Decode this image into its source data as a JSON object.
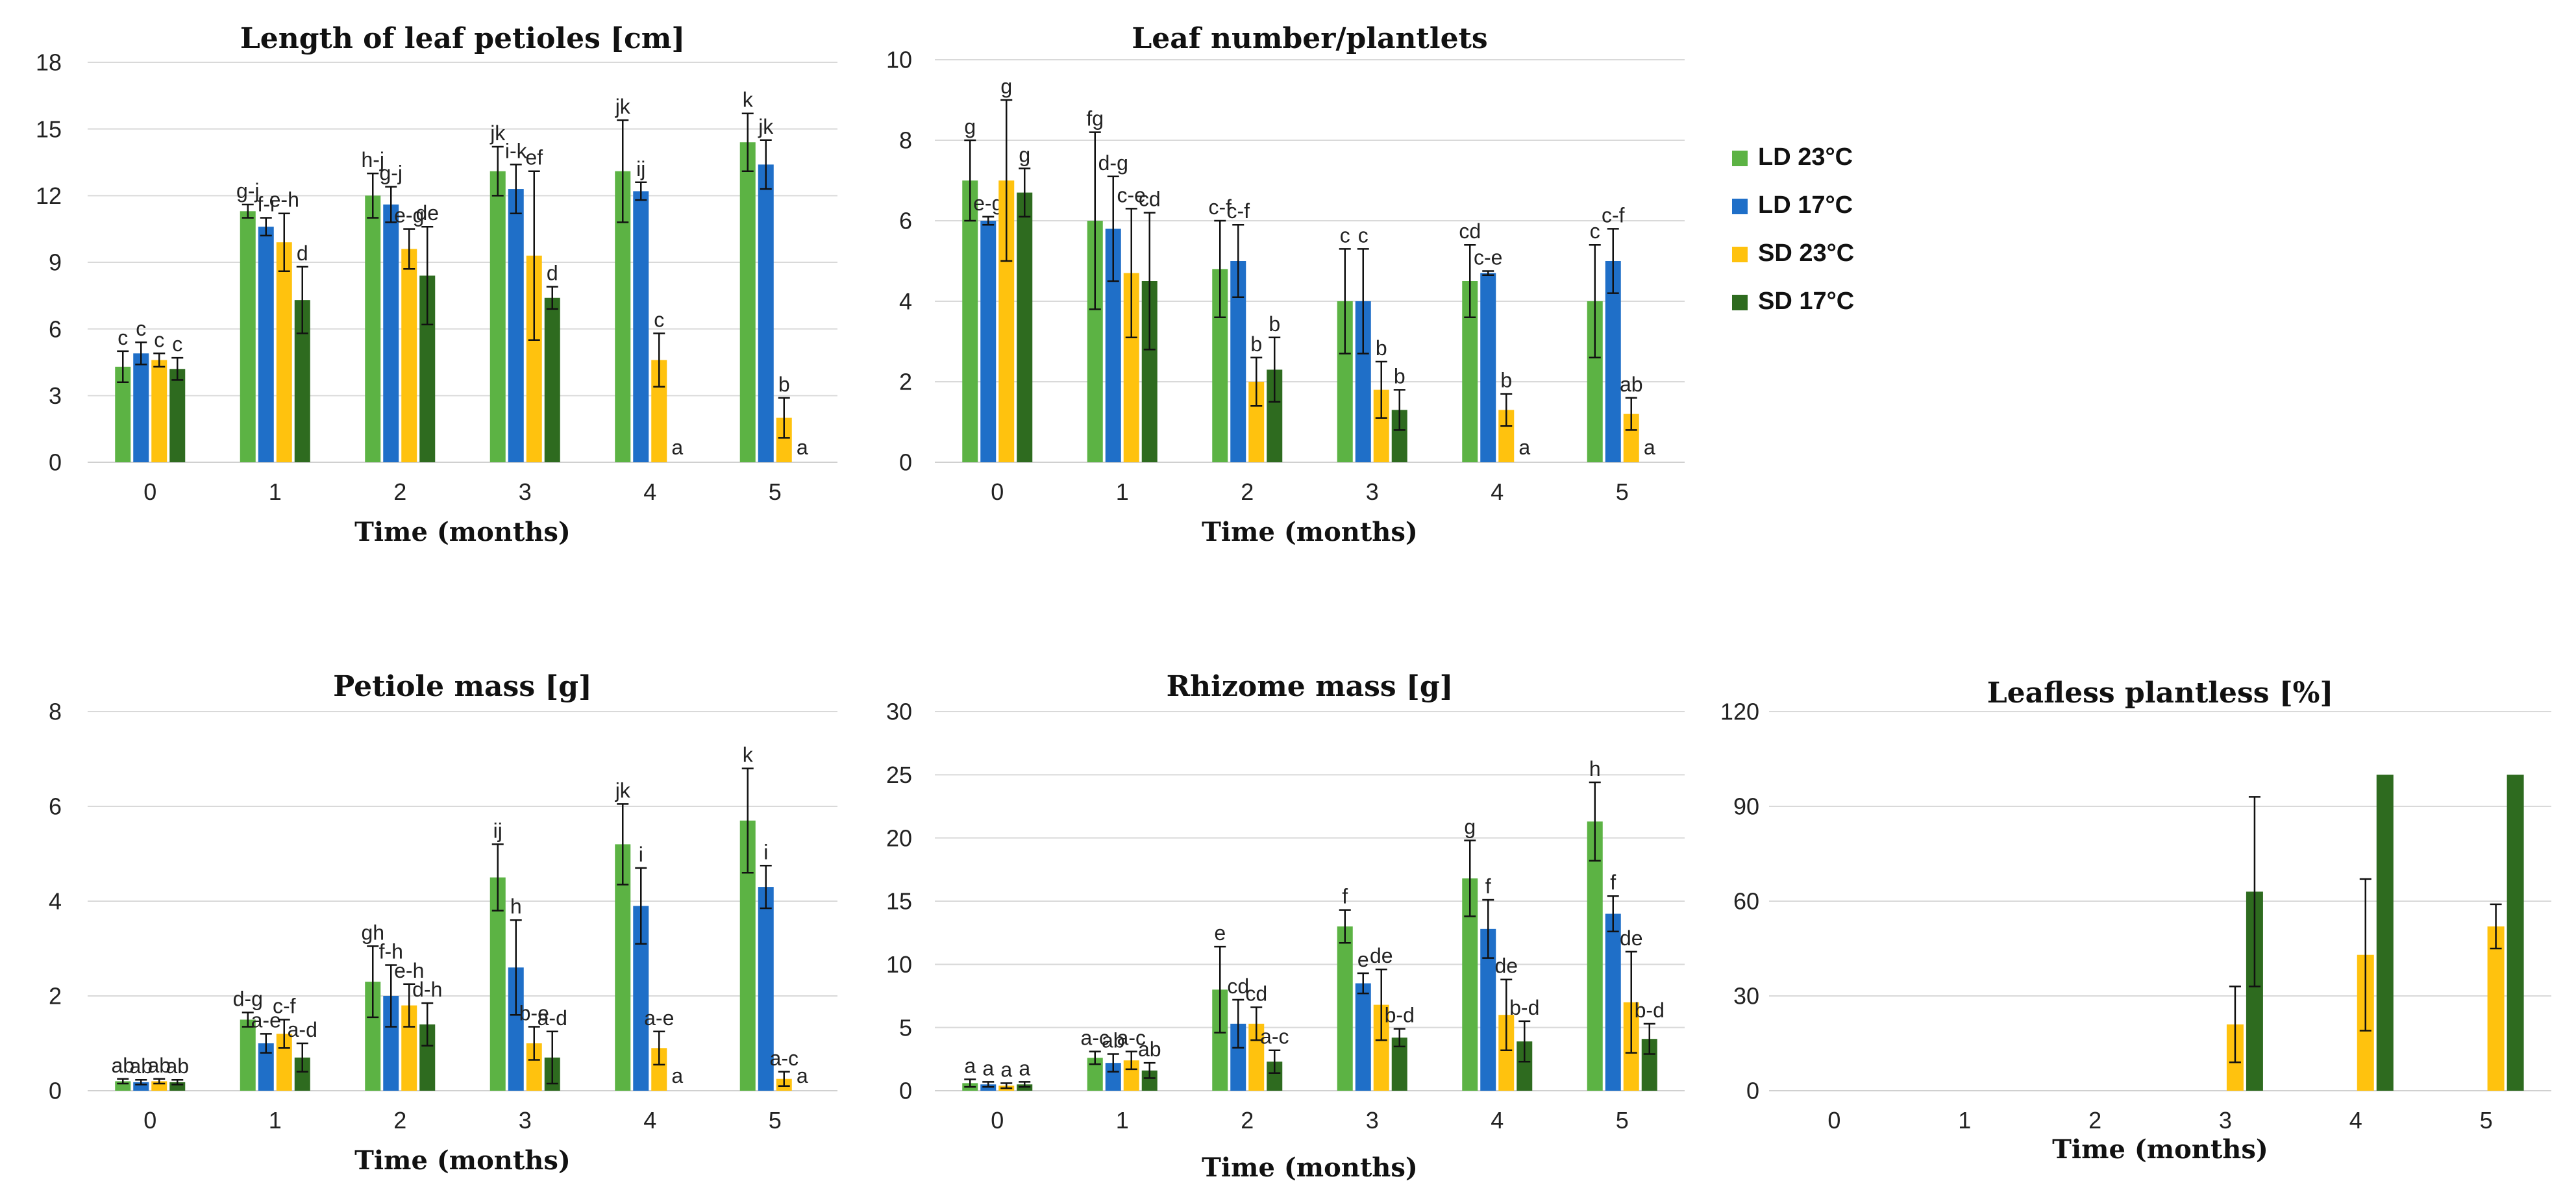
{
  "colors": {
    "LD 23°C": "#5cb344",
    "LD 17°C": "#1f6fc8",
    "SD 23°C": "#ffc20e",
    "SD 17°C": "#2e6b1f"
  },
  "legend": [
    "LD 23°C",
    "LD 17°C",
    "SD 23°C",
    "SD 17°C"
  ],
  "chart_data": [
    {
      "type": "bar",
      "title": "Length of leaf petioles [cm]",
      "xlabel": "Time (months)",
      "ylabel": "",
      "ylim": [
        0,
        18
      ],
      "yticks": [
        0,
        3,
        6,
        9,
        12,
        15,
        18
      ],
      "categories": [
        "0",
        "1",
        "2",
        "3",
        "4",
        "5"
      ],
      "series": [
        {
          "name": "LD 23°C",
          "values": [
            4.3,
            11.3,
            12.0,
            13.1,
            13.1,
            14.4
          ],
          "errors": [
            0.7,
            0.3,
            1.0,
            1.1,
            2.3,
            1.3
          ],
          "labels": [
            "c",
            "g-j",
            "h-j",
            "jk",
            "jk",
            "k"
          ]
        },
        {
          "name": "LD 17°C",
          "values": [
            4.9,
            10.6,
            11.6,
            12.3,
            12.2,
            13.4
          ],
          "errors": [
            0.5,
            0.4,
            0.8,
            1.1,
            0.4,
            1.1
          ],
          "labels": [
            "c",
            "f-i",
            "g-j",
            "i-k",
            "ij",
            "jk"
          ]
        },
        {
          "name": "SD 23°C",
          "values": [
            4.6,
            9.9,
            9.6,
            9.3,
            4.6,
            2.0
          ],
          "errors": [
            0.3,
            1.3,
            0.9,
            3.8,
            1.2,
            0.9
          ],
          "labels": [
            "c",
            "e-h",
            "e-g",
            "ef",
            "c",
            "b"
          ]
        },
        {
          "name": "SD 17°C",
          "values": [
            4.2,
            7.3,
            8.4,
            7.4,
            0,
            0
          ],
          "errors": [
            0.5,
            1.5,
            2.2,
            0.5,
            0,
            0
          ],
          "labels": [
            "c",
            "d",
            "de",
            "d",
            "a",
            "a"
          ]
        }
      ]
    },
    {
      "type": "bar",
      "title": "Leaf number/plantlets",
      "xlabel": "Time (months)",
      "ylabel": "",
      "ylim": [
        0,
        10
      ],
      "yticks": [
        0,
        2,
        4,
        6,
        8,
        10
      ],
      "categories": [
        "0",
        "1",
        "2",
        "3",
        "4",
        "5"
      ],
      "series": [
        {
          "name": "LD 23°C",
          "values": [
            7.0,
            6.0,
            4.8,
            4.0,
            4.5,
            4.0
          ],
          "errors": [
            1.0,
            2.2,
            1.2,
            1.3,
            0.9,
            1.4
          ],
          "labels": [
            "g",
            "fg",
            "c-f",
            "c",
            "cd",
            "c"
          ]
        },
        {
          "name": "LD 17°C",
          "values": [
            6.0,
            5.8,
            5.0,
            4.0,
            4.7,
            5.0
          ],
          "errors": [
            0.1,
            1.3,
            0.9,
            1.3,
            0.05,
            0.8
          ],
          "labels": [
            "e-g",
            "d-g",
            "c-f",
            "c",
            "c-e",
            "c-f"
          ]
        },
        {
          "name": "SD 23°C",
          "values": [
            7.0,
            4.7,
            2.0,
            1.8,
            1.3,
            1.2
          ],
          "errors": [
            2.0,
            1.6,
            0.6,
            0.7,
            0.4,
            0.4
          ],
          "labels": [
            "g",
            "c-e",
            "b",
            "b",
            "b",
            "ab"
          ]
        },
        {
          "name": "SD 17°C",
          "values": [
            6.7,
            4.5,
            2.3,
            1.3,
            0,
            0
          ],
          "errors": [
            0.6,
            1.7,
            0.8,
            0.5,
            0,
            0
          ],
          "labels": [
            "g",
            "cd",
            "b",
            "b",
            "a",
            "a"
          ]
        }
      ]
    },
    {
      "type": "bar",
      "title": "Petiole mass [g]",
      "xlabel": "Time (months)",
      "ylabel": "",
      "ylim": [
        0,
        8
      ],
      "yticks": [
        0,
        2,
        4,
        6,
        8
      ],
      "categories": [
        "0",
        "1",
        "2",
        "3",
        "4",
        "5"
      ],
      "series": [
        {
          "name": "LD 23°C",
          "values": [
            0.2,
            1.5,
            2.3,
            4.5,
            5.2,
            5.7
          ],
          "errors": [
            0.05,
            0.15,
            0.75,
            0.7,
            0.85,
            1.1
          ],
          "labels": [
            "ab",
            "d-g",
            "gh",
            "ij",
            "jk",
            "k"
          ]
        },
        {
          "name": "LD 17°C",
          "values": [
            0.18,
            1.0,
            2.0,
            2.6,
            3.9,
            4.3
          ],
          "errors": [
            0.05,
            0.2,
            0.65,
            1.0,
            0.8,
            0.45
          ],
          "labels": [
            "ab",
            "a-e",
            "f-h",
            "h",
            "i",
            "i"
          ]
        },
        {
          "name": "SD 23°C",
          "values": [
            0.2,
            1.2,
            1.8,
            1.0,
            0.9,
            0.25
          ],
          "errors": [
            0.05,
            0.3,
            0.45,
            0.35,
            0.35,
            0.15
          ],
          "labels": [
            "ab",
            "c-f",
            "e-h",
            "b-e",
            "a-e",
            "a-c"
          ]
        },
        {
          "name": "SD 17°C",
          "values": [
            0.18,
            0.7,
            1.4,
            0.7,
            0,
            0
          ],
          "errors": [
            0.05,
            0.3,
            0.45,
            0.55,
            0,
            0
          ],
          "labels": [
            "ab",
            "a-d",
            "d-h",
            "a-d",
            "a",
            "a"
          ]
        }
      ]
    },
    {
      "type": "bar",
      "title": "Rhizome mass [g]",
      "xlabel": "Time (months)",
      "ylabel": "",
      "ylim": [
        0,
        30
      ],
      "yticks": [
        0,
        5,
        10,
        15,
        20,
        25,
        30
      ],
      "categories": [
        "0",
        "1",
        "2",
        "3",
        "4",
        "5"
      ],
      "series": [
        {
          "name": "LD 23°C",
          "values": [
            0.6,
            2.6,
            8.0,
            13.0,
            16.8,
            21.3
          ],
          "errors": [
            0.3,
            0.5,
            3.4,
            1.3,
            3.0,
            3.1
          ],
          "labels": [
            "a",
            "a-c",
            "e",
            "f",
            "g",
            "h"
          ]
        },
        {
          "name": "LD 17°C",
          "values": [
            0.5,
            2.2,
            5.3,
            8.5,
            12.8,
            14.0
          ],
          "errors": [
            0.2,
            0.7,
            1.9,
            0.8,
            2.3,
            1.4
          ],
          "labels": [
            "a",
            "ab",
            "cd",
            "e",
            "f",
            "f"
          ]
        },
        {
          "name": "SD 23°C",
          "values": [
            0.4,
            2.4,
            5.3,
            6.8,
            6.0,
            7.0
          ],
          "errors": [
            0.2,
            0.7,
            1.3,
            2.8,
            2.8,
            4.0
          ],
          "labels": [
            "a",
            "a-c",
            "cd",
            "de",
            "de",
            "de"
          ]
        },
        {
          "name": "SD 17°C",
          "values": [
            0.5,
            1.6,
            2.3,
            4.2,
            3.9,
            4.1
          ],
          "errors": [
            0.2,
            0.6,
            0.9,
            0.7,
            1.6,
            1.2
          ],
          "labels": [
            "a",
            "ab",
            "a-c",
            "b-d",
            "b-d",
            "b-d"
          ]
        }
      ]
    },
    {
      "type": "bar",
      "title": "Leafless plantless [%]",
      "xlabel": "Time (months)",
      "ylabel": "",
      "ylim": [
        0,
        120
      ],
      "yticks": [
        0,
        30,
        60,
        90,
        120
      ],
      "categories": [
        "0",
        "1",
        "2",
        "3",
        "4",
        "5"
      ],
      "series": [
        {
          "name": "LD 23°C",
          "values": [
            0,
            0,
            0,
            0,
            0,
            0
          ],
          "errors": [
            0,
            0,
            0,
            0,
            0,
            0
          ],
          "labels": [
            "",
            "",
            "",
            "",
            "",
            ""
          ]
        },
        {
          "name": "LD 17°C",
          "values": [
            0,
            0,
            0,
            0,
            0,
            0
          ],
          "errors": [
            0,
            0,
            0,
            0,
            0,
            0
          ],
          "labels": [
            "",
            "",
            "",
            "",
            "",
            ""
          ]
        },
        {
          "name": "SD 23°C",
          "values": [
            0,
            0,
            0,
            21,
            43,
            52
          ],
          "errors": [
            0,
            0,
            0,
            12,
            24,
            7
          ],
          "labels": [
            "",
            "",
            "",
            "",
            "",
            ""
          ]
        },
        {
          "name": "SD 17°C",
          "values": [
            0,
            0,
            0,
            63,
            100,
            100
          ],
          "errors": [
            0,
            0,
            0,
            30,
            0,
            0
          ],
          "labels": [
            "",
            "",
            "",
            "",
            "",
            ""
          ]
        }
      ]
    }
  ]
}
